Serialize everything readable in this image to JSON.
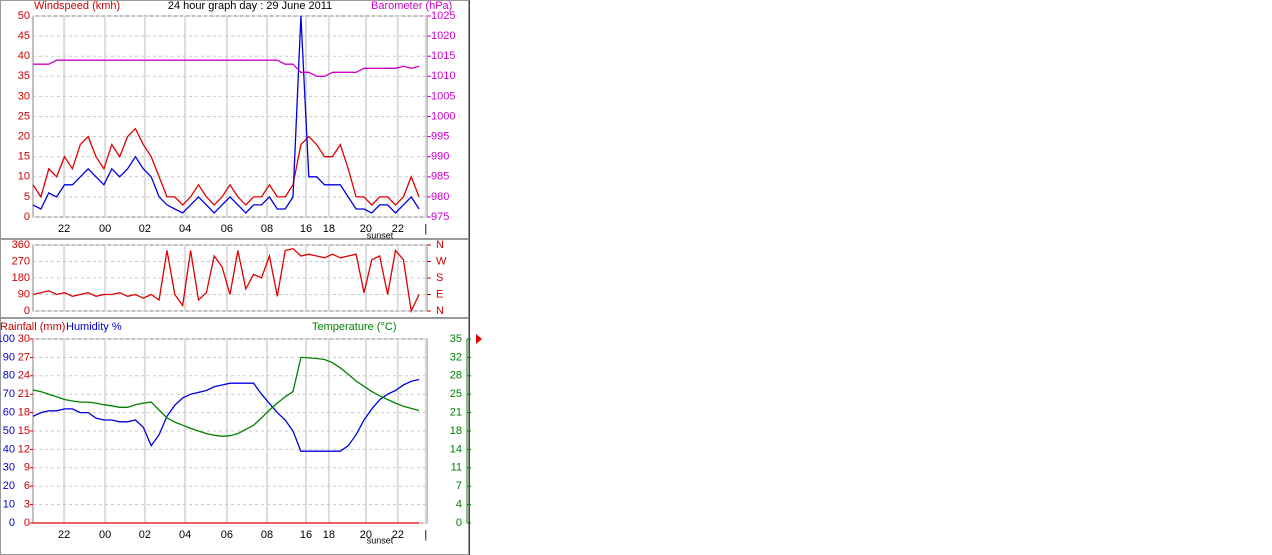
{
  "chart_data": [
    {
      "type": "line",
      "title": "24 hour graph day : 29 June 2011",
      "ylabel": "Windspeed (kmh)",
      "y2label": "Barometer (hPa)",
      "annotation": "sunset",
      "x": [
        0,
        2,
        4,
        6,
        8,
        10,
        12,
        14,
        16,
        18,
        20,
        22,
        24,
        26,
        28,
        30,
        32,
        34,
        36,
        38,
        40,
        42,
        44,
        46,
        48,
        50,
        52,
        54,
        56,
        58,
        60,
        62,
        64,
        66,
        68,
        70,
        72,
        74,
        76,
        78,
        80,
        82,
        84,
        86,
        88,
        90,
        92,
        94,
        96,
        98
      ],
      "xlim": [
        0,
        100
      ],
      "xticks": [
        {
          "value": 7.9,
          "label": "22"
        },
        {
          "value": 18.3,
          "label": "00"
        },
        {
          "value": 28.4,
          "label": "02"
        },
        {
          "value": 38.6,
          "label": "04"
        },
        {
          "value": 49.2,
          "label": "06"
        },
        {
          "value": 59.4,
          "label": "08"
        },
        {
          "value": 69.3,
          "label": "16"
        },
        {
          "value": 75.1,
          "label": "18"
        },
        {
          "value": 84.5,
          "label": "20"
        },
        {
          "value": 92.6,
          "label": "22"
        },
        {
          "value": 99.7,
          "label": "|"
        }
      ],
      "ylim": [
        0,
        50
      ],
      "yticks": [
        0,
        5,
        10,
        15,
        20,
        25,
        30,
        35,
        40,
        45,
        50
      ],
      "y2lim": [
        975,
        1025
      ],
      "y2ticks": [
        975,
        980,
        985,
        990,
        995,
        1000,
        1005,
        1010,
        1015,
        1020,
        1025
      ],
      "grid": true,
      "axis_color": "#d00000",
      "axis2_color": "#d000d0",
      "series": [
        {
          "color": "#e00000",
          "values": [
            8,
            5,
            12,
            10,
            15,
            12,
            18,
            20,
            15,
            12,
            18,
            15,
            20,
            22,
            18,
            15,
            10,
            5,
            5,
            3,
            5,
            8,
            5,
            3,
            5,
            8,
            5,
            3,
            5,
            5,
            8,
            5,
            5,
            8,
            18,
            20,
            18,
            15,
            15,
            18,
            12,
            5,
            5,
            3,
            5,
            5,
            3,
            5,
            10,
            5
          ]
        },
        {
          "color": "#0000e0",
          "values": [
            3,
            2,
            6,
            5,
            8,
            8,
            10,
            12,
            10,
            8,
            12,
            10,
            12,
            15,
            12,
            10,
            5,
            3,
            2,
            1,
            3,
            5,
            3,
            1,
            3,
            5,
            3,
            1,
            3,
            3,
            5,
            2,
            2,
            5,
            50,
            10,
            10,
            8,
            8,
            8,
            5,
            2,
            2,
            1,
            3,
            3,
            1,
            3,
            5,
            2
          ]
        },
        {
          "color": "#d000d0",
          "axis": "y2",
          "values": [
            1013,
            1013,
            1013,
            1014,
            1014,
            1014,
            1014,
            1014,
            1014,
            1014,
            1014,
            1014,
            1014,
            1014,
            1014,
            1014,
            1014,
            1014,
            1014,
            1014,
            1014,
            1014,
            1014,
            1014,
            1014,
            1014,
            1014,
            1014,
            1014,
            1014,
            1014,
            1014,
            1013,
            1013,
            1011,
            1011,
            1010,
            1010,
            1011,
            1011,
            1011,
            1011,
            1012,
            1012,
            1012,
            1012,
            1012,
            1012.5,
            1012,
            1012.5
          ]
        }
      ]
    },
    {
      "type": "line",
      "annotation": "sunset",
      "x": [
        0,
        2,
        4,
        6,
        8,
        10,
        12,
        14,
        16,
        18,
        20,
        22,
        24,
        26,
        28,
        30,
        32,
        34,
        36,
        38,
        40,
        42,
        44,
        46,
        48,
        50,
        52,
        54,
        56,
        58,
        60,
        62,
        64,
        66,
        68,
        70,
        72,
        74,
        76,
        78,
        80,
        82,
        84,
        86,
        88,
        90,
        92,
        94,
        96,
        98
      ],
      "xlim": [
        0,
        100
      ],
      "ylim": [
        0,
        360
      ],
      "yticks": [
        0,
        90,
        180,
        270,
        360
      ],
      "y2lim": [
        0,
        360
      ],
      "y2ticks": [
        {
          "value": 0,
          "label": "N"
        },
        {
          "value": 90,
          "label": "E"
        },
        {
          "value": 180,
          "label": "S"
        },
        {
          "value": 270,
          "label": "W"
        },
        {
          "value": 360,
          "label": "N"
        }
      ],
      "grid": true,
      "axis_color": "#d00000",
      "axis2_color": "#d00000",
      "series": [
        {
          "color": "#e00000",
          "values": [
            90,
            100,
            110,
            90,
            100,
            80,
            90,
            100,
            80,
            90,
            90,
            100,
            80,
            90,
            70,
            90,
            60,
            330,
            90,
            30,
            330,
            60,
            100,
            300,
            240,
            90,
            330,
            120,
            200,
            180,
            300,
            80,
            330,
            340,
            300,
            310,
            300,
            290,
            310,
            290,
            300,
            310,
            100,
            280,
            300,
            90,
            330,
            280,
            0,
            90
          ]
        }
      ]
    },
    {
      "type": "line",
      "ylabel": "Humidity %",
      "y2label": "Temperature (°C)",
      "y3label": "Rainfall (mm)",
      "annotation": "sunset",
      "x": [
        0,
        2,
        4,
        6,
        8,
        10,
        12,
        14,
        16,
        18,
        20,
        22,
        24,
        26,
        28,
        30,
        32,
        34,
        36,
        38,
        40,
        42,
        44,
        46,
        48,
        50,
        52,
        54,
        56,
        58,
        60,
        62,
        64,
        66,
        68,
        70,
        72,
        74,
        76,
        78,
        80,
        82,
        84,
        86,
        88,
        90,
        92,
        94,
        96,
        98
      ],
      "xlim": [
        0,
        100
      ],
      "xticks": [
        {
          "value": 7.9,
          "label": "22"
        },
        {
          "value": 18.3,
          "label": "00"
        },
        {
          "value": 28.4,
          "label": "02"
        },
        {
          "value": 38.6,
          "label": "04"
        },
        {
          "value": 49.2,
          "label": "06"
        },
        {
          "value": 59.4,
          "label": "08"
        },
        {
          "value": 69.3,
          "label": "16"
        },
        {
          "value": 75.1,
          "label": "18"
        },
        {
          "value": 84.5,
          "label": "20"
        },
        {
          "value": 92.6,
          "label": "22"
        },
        {
          "value": 99.7,
          "label": "|"
        }
      ],
      "ylim": [
        0,
        100
      ],
      "yticks": [
        0,
        10,
        20,
        30,
        40,
        50,
        60,
        70,
        80,
        90,
        100
      ],
      "y3lim": [
        0,
        30
      ],
      "y3ticks": [
        0,
        3,
        6,
        9,
        12,
        15,
        18,
        21,
        24,
        27,
        30
      ],
      "y2lim": [
        0,
        35
      ],
      "y2ticks": [
        0,
        {
          "value": 3.5,
          "label": "4"
        },
        7,
        {
          "value": 10.5,
          "label": "11"
        },
        14,
        {
          "value": 17.5,
          "label": "18"
        },
        21,
        {
          "value": 24.5,
          "label": "25"
        },
        28,
        {
          "value": 31.5,
          "label": "32"
        },
        35
      ],
      "grid": true,
      "axis_color": "#0000d0",
      "axis2_color": "#008000",
      "axis3_color": "#d00000",
      "series": [
        {
          "color": "#0000e0",
          "values": [
            58,
            60,
            61,
            61,
            62,
            62,
            60,
            60,
            57,
            56,
            56,
            55,
            55,
            56,
            52,
            42,
            48,
            58,
            64,
            68,
            70,
            71,
            72,
            74,
            75,
            76,
            76,
            76,
            76,
            70,
            65,
            60,
            56,
            50,
            39,
            39,
            39,
            39,
            39,
            39,
            42,
            48,
            56,
            62,
            67,
            70,
            72,
            75,
            77,
            78
          ]
        },
        {
          "color": "#008000",
          "axis": "y2",
          "values": [
            25.3,
            25,
            24.5,
            24,
            23.5,
            23.2,
            23,
            23,
            22.8,
            22.5,
            22.3,
            22,
            22,
            22.5,
            22.8,
            23,
            21.5,
            20,
            19.2,
            18.6,
            18,
            17.5,
            17,
            16.7,
            16.5,
            16.6,
            17,
            17.8,
            18.6,
            20,
            21.5,
            22.8,
            24,
            25,
            31.5,
            31.4,
            31.3,
            31.1,
            30.5,
            29.5,
            28.3,
            27,
            26,
            25,
            24.2,
            23.5,
            22.8,
            22.2,
            21.8,
            21.4
          ]
        },
        {
          "color": "#e00000",
          "axis": "y3",
          "values": [
            0,
            0,
            0,
            0,
            0,
            0,
            0,
            0,
            0,
            0,
            0,
            0,
            0,
            0,
            0,
            0,
            0,
            0,
            0,
            0,
            0,
            0,
            0,
            0,
            0,
            0,
            0,
            0,
            0,
            0,
            0,
            0,
            0,
            0,
            0,
            0,
            0,
            0,
            0,
            0,
            0,
            0,
            0,
            0,
            0,
            0,
            0,
            0,
            0,
            0
          ]
        }
      ]
    }
  ]
}
